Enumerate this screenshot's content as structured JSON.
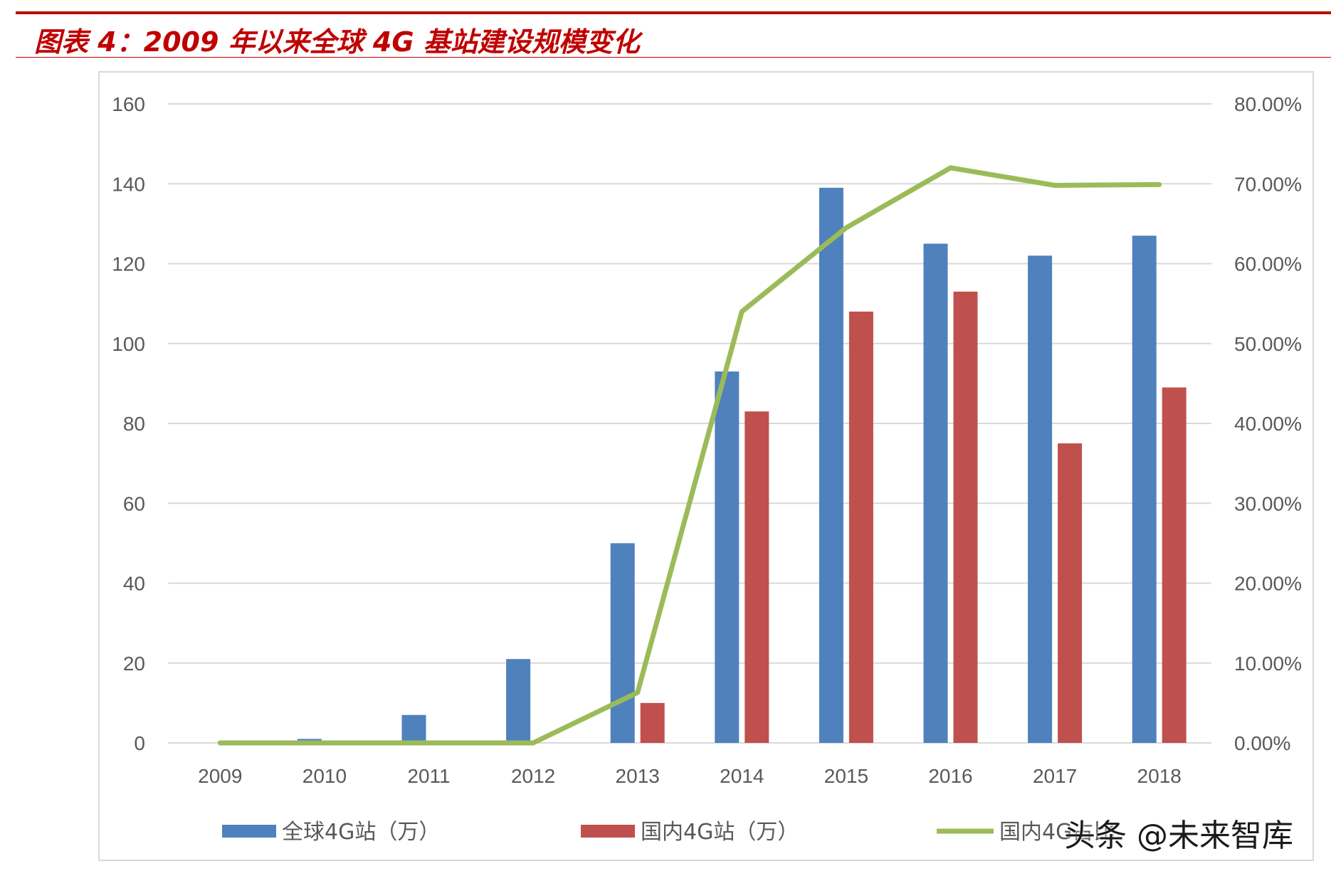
{
  "title": "图表 4：2009 年以来全球 4G 基站建设规模变化",
  "watermark": "头条 @未来智库",
  "colors": {
    "title": "#c00000",
    "global": "#4f81bd",
    "domestic": "#c0504d",
    "share": "#9bbb59",
    "grid": "#d9d9d9"
  },
  "chart_data": {
    "type": "bar",
    "categories": [
      "2009",
      "2010",
      "2011",
      "2012",
      "2013",
      "2014",
      "2015",
      "2016",
      "2017",
      "2018"
    ],
    "y_left": {
      "range": [
        0,
        160
      ],
      "ticks": [
        "0",
        "20",
        "40",
        "60",
        "80",
        "100",
        "120",
        "140",
        "160"
      ]
    },
    "y_right": {
      "range": [
        0,
        0.8
      ],
      "ticks": [
        "0.00%",
        "10.00%",
        "20.00%",
        "30.00%",
        "40.00%",
        "50.00%",
        "60.00%",
        "70.00%",
        "80.00%"
      ]
    },
    "grid": true,
    "legend_position": "bottom",
    "series": [
      {
        "name": "全球4G站（万）",
        "type": "bar",
        "axis": "left",
        "color": "#4f81bd",
        "values": [
          0,
          1,
          7,
          21,
          50,
          93,
          139,
          125,
          122,
          127
        ]
      },
      {
        "name": "国内4G站（万）",
        "type": "bar",
        "axis": "left",
        "color": "#c0504d",
        "values": [
          0,
          0,
          0,
          0,
          10,
          83,
          108,
          113,
          75,
          89
        ]
      },
      {
        "name": "国内4G占比",
        "type": "line",
        "axis": "right",
        "color": "#9bbb59",
        "values": [
          0,
          0,
          0,
          0,
          0.063,
          0.54,
          0.645,
          0.72,
          0.698,
          0.699
        ]
      }
    ]
  }
}
